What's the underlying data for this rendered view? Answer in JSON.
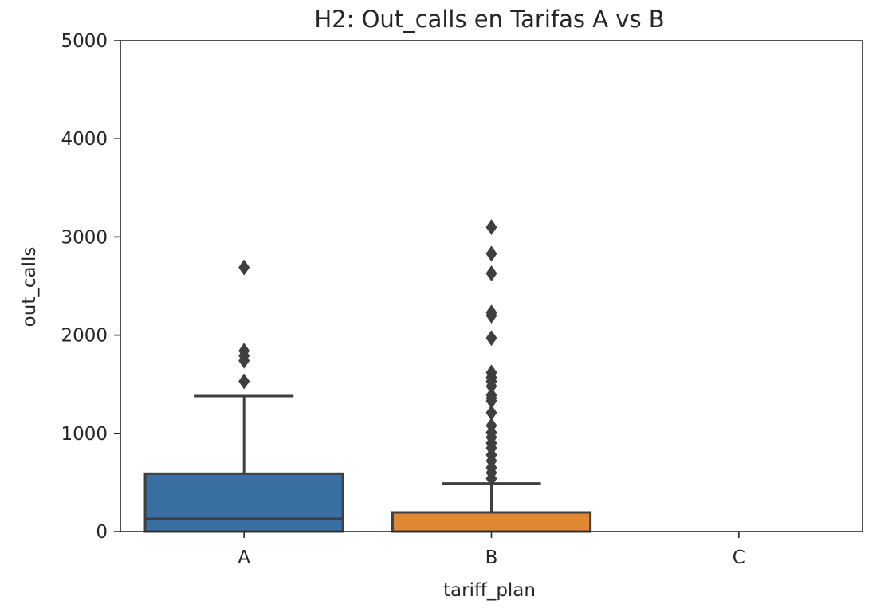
{
  "chart_data": {
    "type": "box",
    "title": "H2: Out_calls en Tarifas A vs B",
    "xlabel": "tariff_plan",
    "ylabel": "out_calls",
    "ylim": [
      0,
      5000
    ],
    "yticks": [
      0,
      1000,
      2000,
      3000,
      4000,
      5000
    ],
    "categories": [
      "A",
      "B",
      "C"
    ],
    "grid": false,
    "legend": "none",
    "boxes": [
      {
        "category": "A",
        "color": "#3a6fa3",
        "whisker_low": 0,
        "q1": 0,
        "median": 130,
        "q3": 590,
        "whisker_high": 1380,
        "fliers": [
          1530,
          1740,
          1790,
          1840,
          2690
        ]
      },
      {
        "category": "B",
        "color": "#e08734",
        "whisker_low": 0,
        "q1": 0,
        "median": 0,
        "q3": 195,
        "whisker_high": 490,
        "fliers": [
          540,
          600,
          650,
          720,
          780,
          850,
          900,
          960,
          1010,
          1080,
          1210,
          1330,
          1360,
          1390,
          1480,
          1530,
          1570,
          1620,
          1970,
          2200,
          2230,
          2630,
          2830,
          3100
        ]
      },
      {
        "category": "C",
        "color": "#3f9a4a",
        "empty": true
      }
    ]
  }
}
